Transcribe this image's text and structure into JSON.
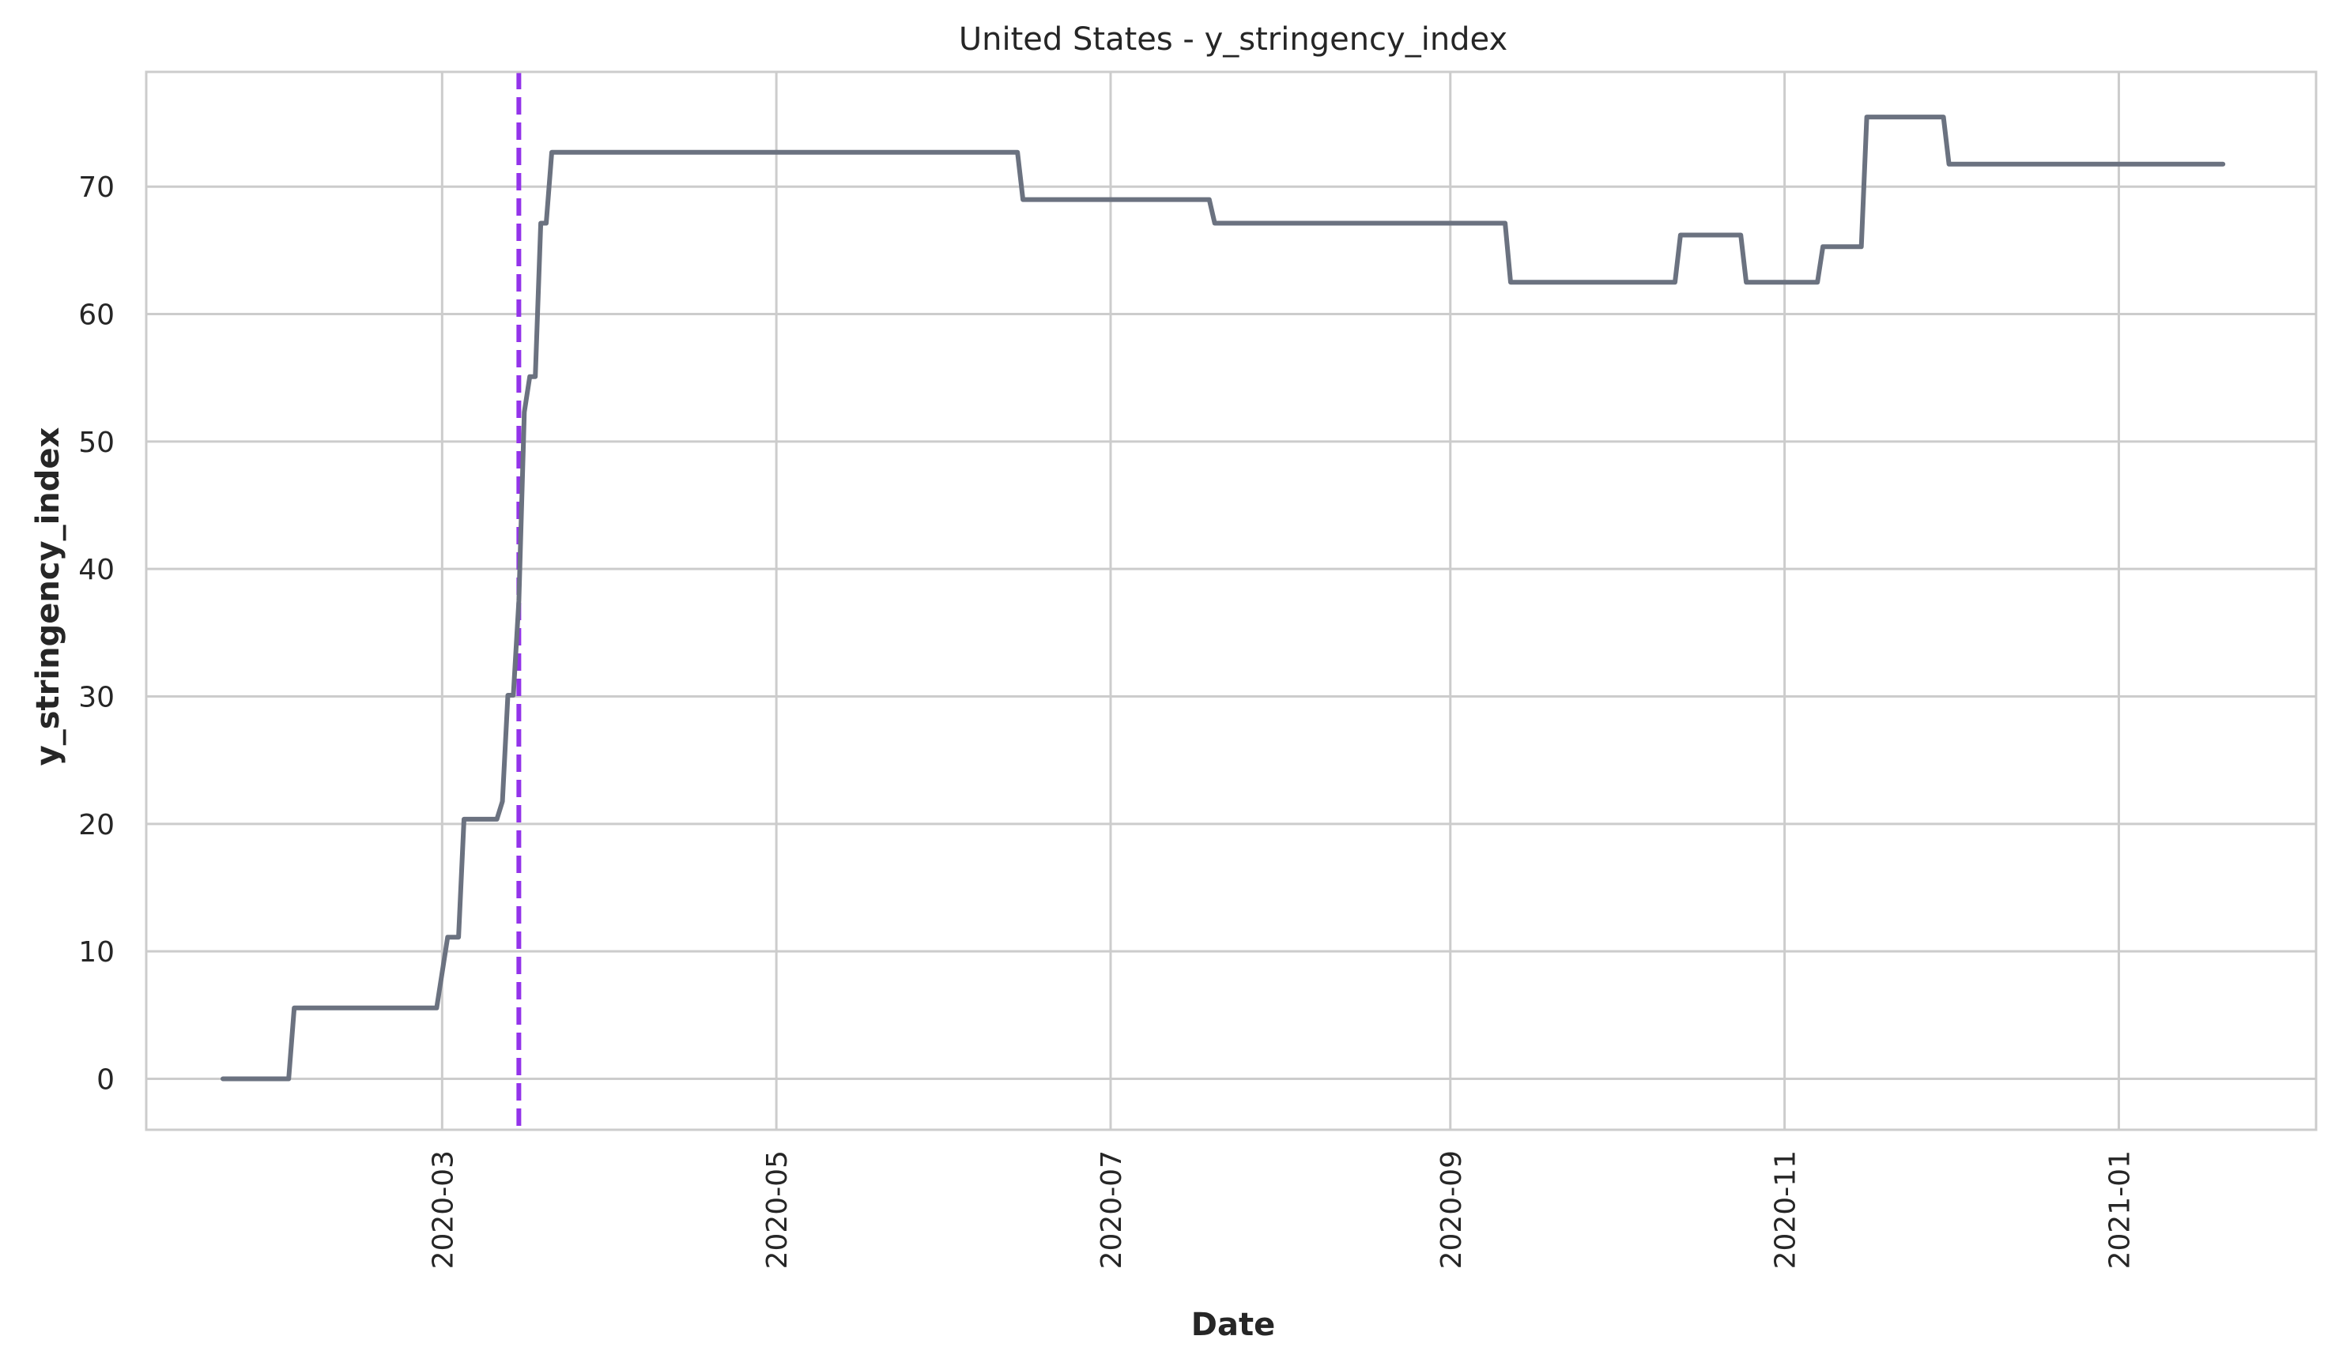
{
  "chart_data": {
    "type": "line",
    "title": "United States - y_stringency_index",
    "xlabel": "Date",
    "ylabel": "y_stringency_index",
    "xlim": [
      "2020-01-07",
      "2021-02-06"
    ],
    "ylim": [
      -4,
      79
    ],
    "x_ticks": [
      "2020-03",
      "2020-05",
      "2020-07",
      "2020-09",
      "2020-11",
      "2021-01"
    ],
    "y_ticks": [
      "0",
      "10",
      "20",
      "30",
      "40",
      "50",
      "60",
      "70"
    ],
    "grid": true,
    "legend": "none",
    "series": [
      {
        "color": "#6b7280",
        "x": [
          "2020-01-21",
          "2020-02-02",
          "2020-02-03",
          "2020-02-29",
          "2020-03-02",
          "2020-03-04",
          "2020-03-05",
          "2020-03-11",
          "2020-03-12",
          "2020-03-13",
          "2020-03-14",
          "2020-03-15",
          "2020-03-16",
          "2020-03-17",
          "2020-03-18",
          "2020-03-19",
          "2020-03-20",
          "2020-03-21",
          "2020-03-22",
          "2020-06-14",
          "2020-06-15",
          "2020-07-19",
          "2020-07-20",
          "2020-09-11",
          "2020-09-12",
          "2020-10-12",
          "2020-10-13",
          "2020-10-24",
          "2020-10-25",
          "2020-11-07",
          "2020-11-08",
          "2020-11-15",
          "2020-11-16",
          "2020-11-30",
          "2020-12-01",
          "2021-01-20"
        ],
        "y": [
          0,
          0,
          5.56,
          5.56,
          11.11,
          11.11,
          20.37,
          20.37,
          21.76,
          30.09,
          30.09,
          37.5,
          52.31,
          55.09,
          55.09,
          67.13,
          67.13,
          72.69,
          72.69,
          72.69,
          68.98,
          68.98,
          67.13,
          67.13,
          62.5,
          62.5,
          66.2,
          66.2,
          62.5,
          62.5,
          65.28,
          65.28,
          75.46,
          75.46,
          71.76,
          71.76
        ]
      }
    ],
    "reference_line": {
      "x": "2020-03-15",
      "style": "dashed",
      "color": "#9333ea"
    }
  }
}
